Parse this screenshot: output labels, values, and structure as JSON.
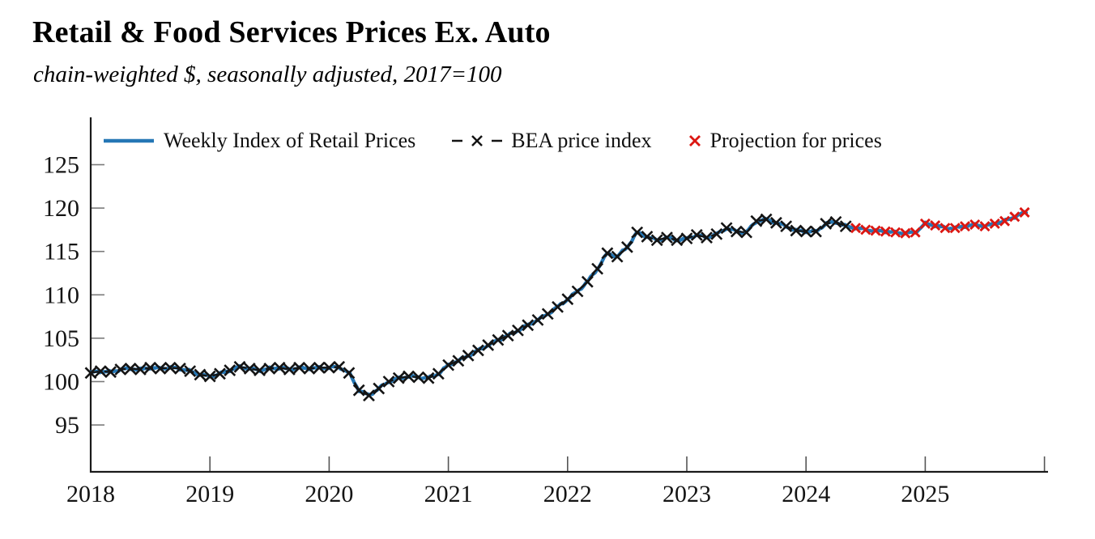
{
  "title": "Retail & Food Services Prices Ex. Auto",
  "subtitle": "chain-weighted $, seasonally adjusted, 2017=100",
  "legend": [
    {
      "label": "Weekly Index of Retail Prices",
      "swatch": "solid-line",
      "color": "#2577b5"
    },
    {
      "label": "BEA price index",
      "swatch": "dash-x-dash",
      "color": "#141414"
    },
    {
      "label": "Projection for prices",
      "swatch": "x-marker",
      "color": "#dc1712"
    }
  ],
  "chart_data": {
    "type": "line",
    "title": "Retail & Food Services Prices Ex. Auto",
    "subtitle": "chain-weighted $, seasonally adjusted, 2017=100",
    "grid": false,
    "legend_position": "top-inside",
    "y_axis": {
      "ticks": [
        95,
        100,
        105,
        110,
        115,
        120,
        125
      ],
      "min": 89.6,
      "max": 130.8,
      "label": ""
    },
    "x_axis": {
      "tick_years": [
        2018,
        2019,
        2020,
        2021,
        2022,
        2023,
        2024,
        2025,
        2026
      ],
      "labeled_years": [
        2018,
        2019,
        2020,
        2021,
        2022,
        2023,
        2024,
        2025
      ],
      "min": 2018,
      "max": 2026.03,
      "label": ""
    },
    "series": [
      {
        "name": "Weekly Index of Retail Prices",
        "type": "line",
        "color": "#2577b5",
        "frequency": "weekly",
        "derived_from": "monthly_anchors_of_other_two_series",
        "wiggle": {
          "amp1": 0.1,
          "freq1": 0.9,
          "phase1": 0.5,
          "amp2": 0.06,
          "freq2": 2.33,
          "phase2": 1.7
        },
        "end_year": 2025.852
      },
      {
        "name": "BEA price index",
        "type": "dashed-line-with-x-markers",
        "color": "#141414",
        "start_month": "2018-01",
        "frequency": "monthly",
        "values": [
          101.0,
          101.2,
          101.1,
          101.4,
          101.5,
          101.4,
          101.6,
          101.5,
          101.6,
          101.5,
          101.2,
          100.8,
          100.6,
          100.9,
          101.3,
          101.7,
          101.5,
          101.3,
          101.5,
          101.6,
          101.4,
          101.6,
          101.5,
          101.6,
          101.6,
          101.7,
          101.0,
          99.0,
          98.4,
          99.2,
          100.0,
          100.4,
          100.6,
          100.5,
          100.4,
          100.9,
          101.9,
          102.4,
          103.0,
          103.6,
          104.2,
          104.8,
          105.3,
          105.9,
          106.5,
          107.1,
          107.8,
          108.6,
          109.5,
          110.4,
          111.5,
          113.0,
          114.8,
          114.4,
          115.5,
          117.2,
          116.7,
          116.3,
          116.6,
          116.3,
          116.5,
          116.9,
          116.6,
          117.0,
          117.7,
          117.3,
          117.2,
          118.5,
          118.7,
          118.3,
          117.9,
          117.4,
          117.3,
          117.3,
          118.2,
          118.4,
          117.9
        ]
      },
      {
        "name": "Projection for prices",
        "type": "x-markers",
        "color": "#dc1712",
        "start_month": "2024-06",
        "frequency": "monthly",
        "values": [
          117.7,
          117.5,
          117.4,
          117.3,
          117.2,
          117.1,
          117.2,
          118.2,
          118.0,
          117.7,
          117.7,
          117.9,
          118.1,
          117.9,
          118.2,
          118.5,
          119.0,
          119.5
        ]
      }
    ]
  }
}
